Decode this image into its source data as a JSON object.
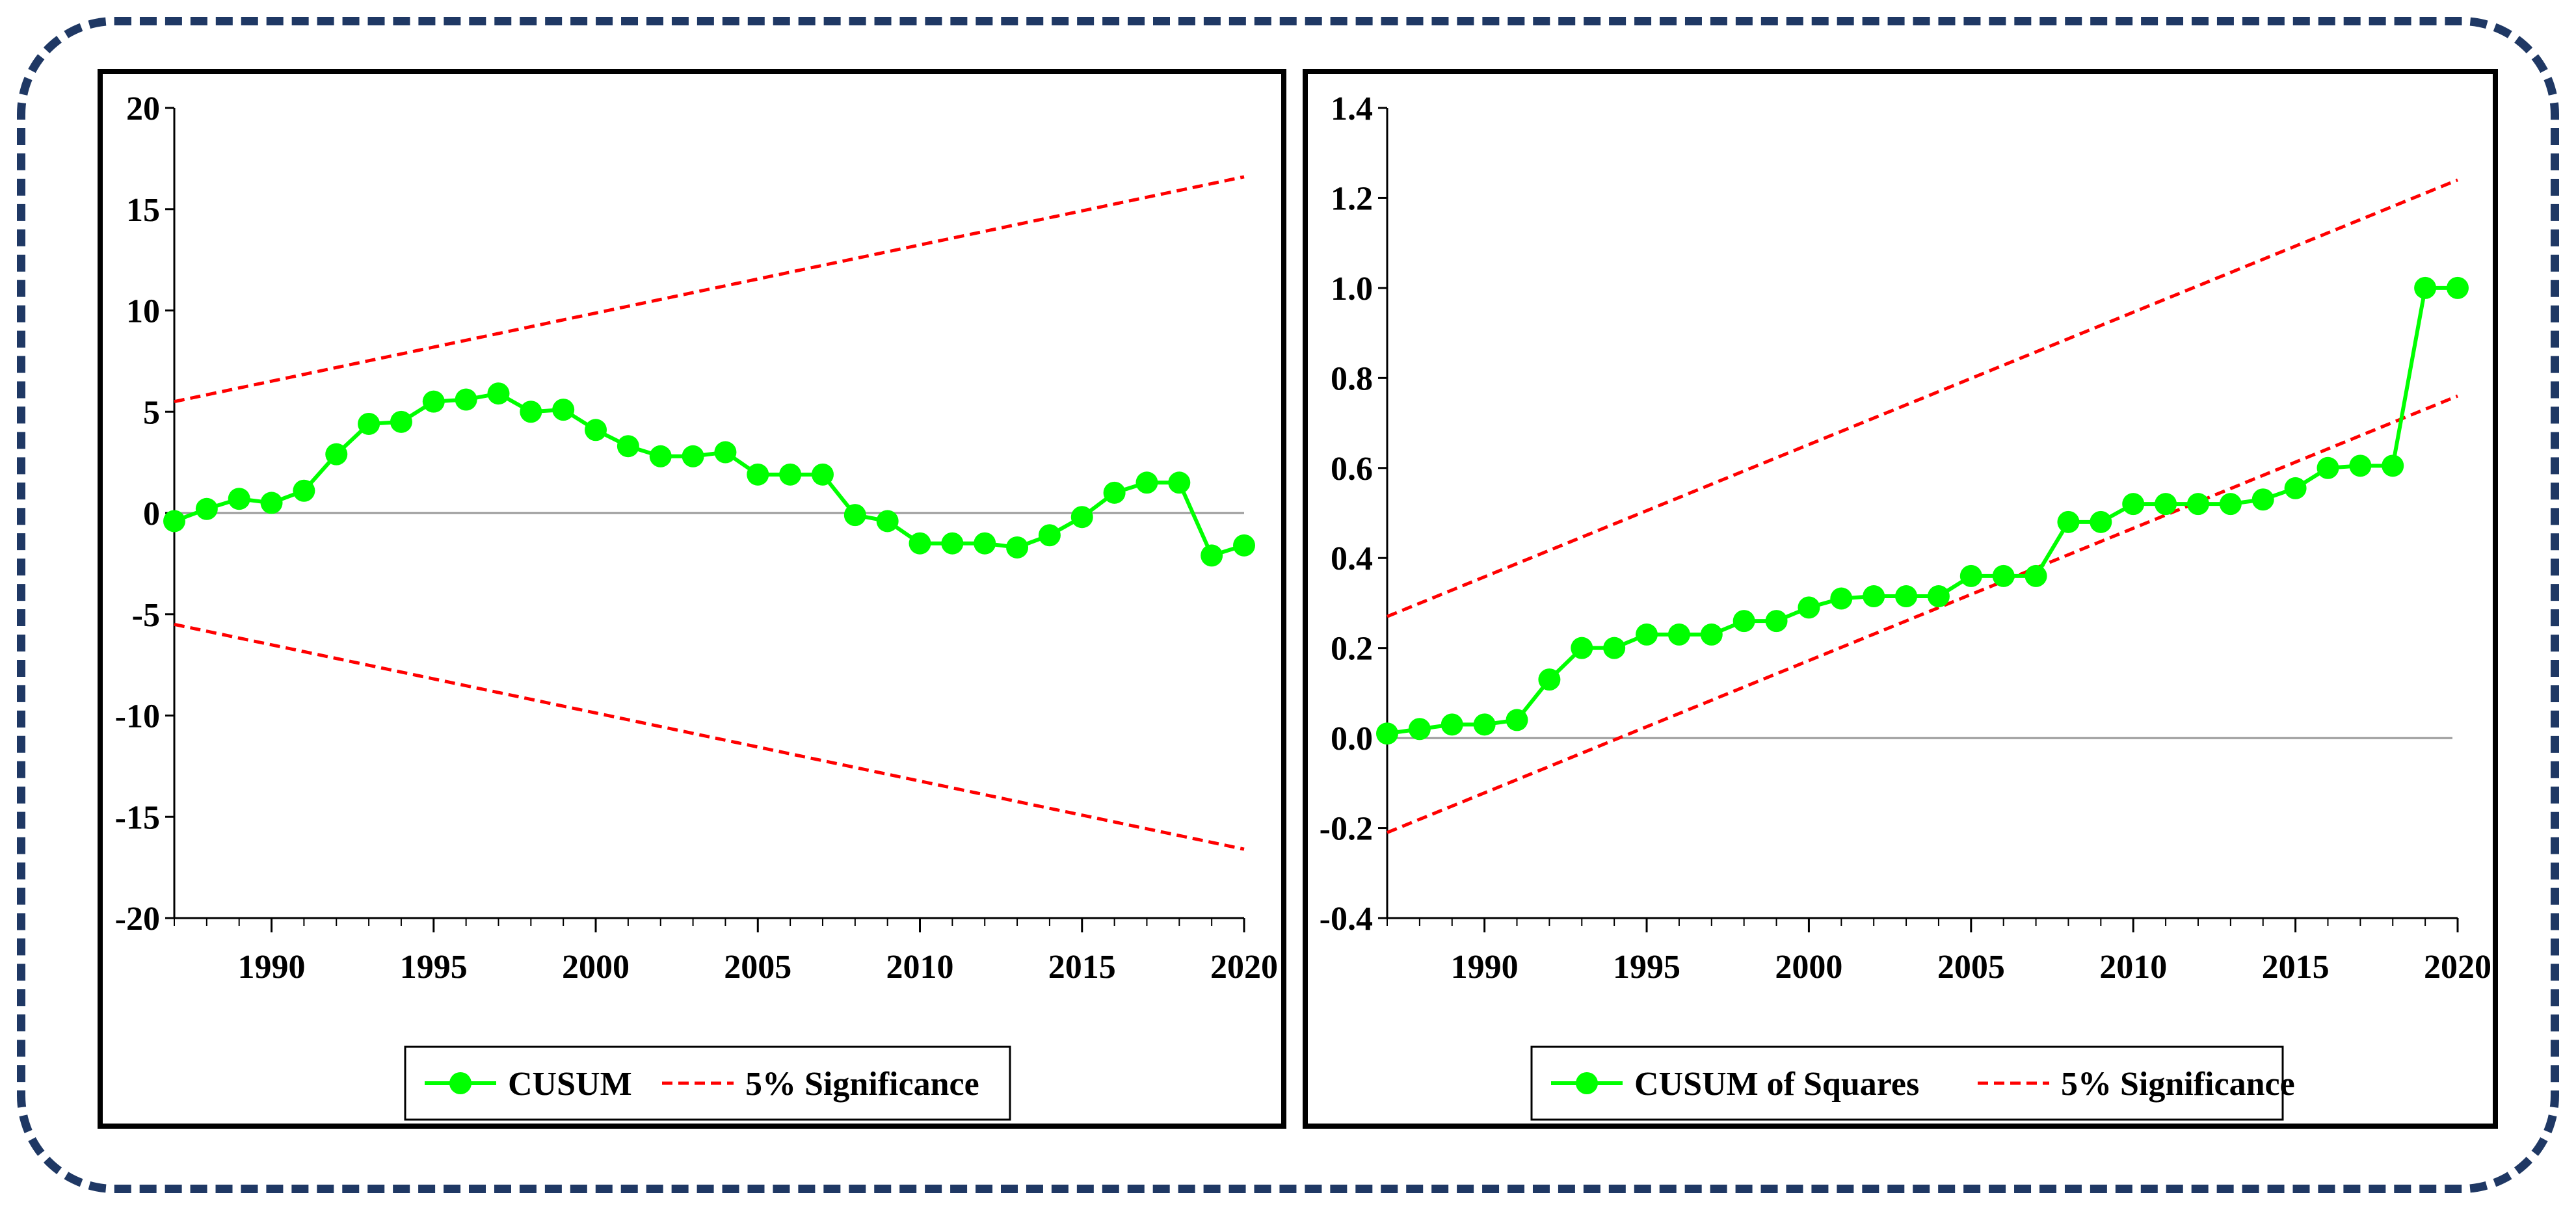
{
  "chart_data": [
    {
      "type": "line",
      "x": [
        1987,
        1988,
        1989,
        1990,
        1991,
        1992,
        1993,
        1994,
        1995,
        1996,
        1997,
        1998,
        1999,
        2000,
        2001,
        2002,
        2003,
        2004,
        2005,
        2006,
        2007,
        2008,
        2009,
        2010,
        2011,
        2012,
        2013,
        2014,
        2015,
        2016,
        2017,
        2018,
        2019,
        2020
      ],
      "series": [
        {
          "name": "CUSUM",
          "style": "line-markers",
          "color": "#00ff00",
          "values": [
            -0.4,
            0.2,
            0.7,
            0.5,
            1.1,
            2.9,
            4.4,
            4.5,
            5.5,
            5.6,
            5.9,
            5.0,
            5.1,
            4.1,
            3.3,
            2.8,
            2.8,
            3.0,
            1.9,
            1.9,
            1.9,
            -0.1,
            -0.4,
            -1.5,
            -1.5,
            -1.5,
            -1.7,
            -1.1,
            -0.2,
            1.0,
            1.5,
            1.5,
            -2.1,
            -1.6
          ]
        },
        {
          "name": "5% Significance",
          "style": "dashed",
          "color": "#ff0000",
          "x": [
            1987,
            2020
          ],
          "values": [
            5.5,
            16.6
          ]
        },
        {
          "name": "5% Significance (lower)",
          "style": "dashed",
          "color": "#ff0000",
          "x": [
            1987,
            2020
          ],
          "values": [
            -5.5,
            -16.6
          ]
        }
      ],
      "zero_line": 0,
      "title": "",
      "xlabel": "",
      "ylabel": "",
      "xlim": [
        1987,
        2020
      ],
      "ylim": [
        -20,
        20
      ],
      "xticks": [
        1990,
        1995,
        2000,
        2005,
        2010,
        2015,
        2020
      ],
      "yticks": [
        20,
        15,
        10,
        5,
        0,
        -5,
        -10,
        -15,
        -20
      ],
      "legend": [
        {
          "label": "CUSUM",
          "color": "#00ff00",
          "style": "line-markers"
        },
        {
          "label": "5% Significance",
          "color": "#ff0000",
          "style": "dashed"
        }
      ],
      "legend_position": "bottom-center"
    },
    {
      "type": "line",
      "x": [
        1987,
        1988,
        1989,
        1990,
        1991,
        1992,
        1993,
        1994,
        1995,
        1996,
        1997,
        1998,
        1999,
        2000,
        2001,
        2002,
        2003,
        2004,
        2005,
        2006,
        2007,
        2008,
        2009,
        2010,
        2011,
        2012,
        2013,
        2014,
        2015,
        2016,
        2017,
        2018,
        2019,
        2020
      ],
      "series": [
        {
          "name": "CUSUM of Squares",
          "style": "line-markers",
          "color": "#00ff00",
          "values": [
            0.01,
            0.02,
            0.03,
            0.03,
            0.04,
            0.13,
            0.2,
            0.2,
            0.23,
            0.23,
            0.23,
            0.26,
            0.26,
            0.29,
            0.31,
            0.315,
            0.315,
            0.315,
            0.36,
            0.36,
            0.36,
            0.48,
            0.48,
            0.52,
            0.52,
            0.52,
            0.52,
            0.53,
            0.555,
            0.6,
            0.605,
            0.605,
            1.0,
            1.0
          ]
        },
        {
          "name": "5% Significance",
          "style": "dashed",
          "color": "#ff0000",
          "x": [
            1987,
            2020
          ],
          "values": [
            0.27,
            1.24
          ]
        },
        {
          "name": "5% Significance (lower)",
          "style": "dashed",
          "color": "#ff0000",
          "x": [
            1987,
            2020
          ],
          "values": [
            -0.21,
            0.76
          ]
        }
      ],
      "zero_line": 0,
      "title": "",
      "xlabel": "",
      "ylabel": "",
      "xlim": [
        1987,
        2020
      ],
      "ylim": [
        -0.4,
        1.4
      ],
      "xticks": [
        1990,
        1995,
        2000,
        2005,
        2010,
        2015,
        2020
      ],
      "yticks": [
        1.4,
        1.2,
        1.0,
        0.8,
        0.6,
        0.4,
        0.2,
        0.0,
        -0.2,
        -0.4
      ],
      "ytick_labels": [
        "1.4",
        "1.2",
        "1.0",
        "0.8",
        "0.6",
        "0.4",
        "0.2",
        "0.0",
        "-0.2",
        "-0.4"
      ],
      "legend": [
        {
          "label": "CUSUM of Squares",
          "color": "#00ff00",
          "style": "line-markers"
        },
        {
          "label": "5% Significance",
          "color": "#ff0000",
          "style": "dashed"
        }
      ],
      "legend_position": "bottom-center"
    }
  ]
}
